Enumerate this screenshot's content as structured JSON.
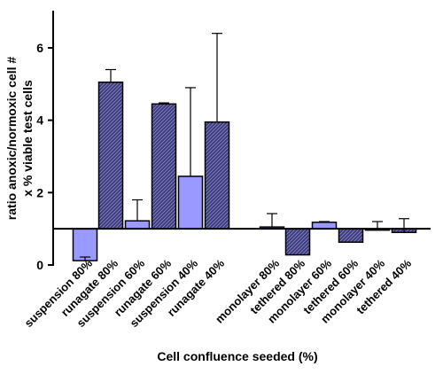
{
  "chart_data": {
    "type": "bar",
    "xlabel": "Cell confluence seeded (%)",
    "ylabel_lines": [
      "ratio anoxic/normoxic cell #",
      "x % viable test cells"
    ],
    "ylim": [
      0,
      7
    ],
    "yticks": [
      0,
      2,
      4,
      6
    ],
    "baseline": 1,
    "grid": false,
    "categories": [
      "suspension 80%",
      "runagate 80%",
      "suspension 60%",
      "runagate 60%",
      "suspension 40%",
      "runagate 40%",
      "monolayer 80%",
      "tethered 80%",
      "monolayer 60%",
      "tethered 60%",
      "monolayer 40%",
      "tethered 40%"
    ],
    "values": [
      0.12,
      5.05,
      1.22,
      4.45,
      2.45,
      3.95,
      1.05,
      0.28,
      1.18,
      0.63,
      1.0,
      0.9
    ],
    "error_upper": [
      0.22,
      5.4,
      1.8,
      4.48,
      4.9,
      6.4,
      1.42,
      0.28,
      1.2,
      0.63,
      1.2,
      1.28
    ],
    "bar_styles": [
      "solid",
      "hatched",
      "solid",
      "hatched",
      "solid",
      "hatched",
      "solid",
      "hatched",
      "solid",
      "hatched",
      "solid",
      "hatched"
    ],
    "colors": {
      "solid": "#9999ff",
      "hatched": "#3b3b7a",
      "axis": "#000000"
    }
  }
}
